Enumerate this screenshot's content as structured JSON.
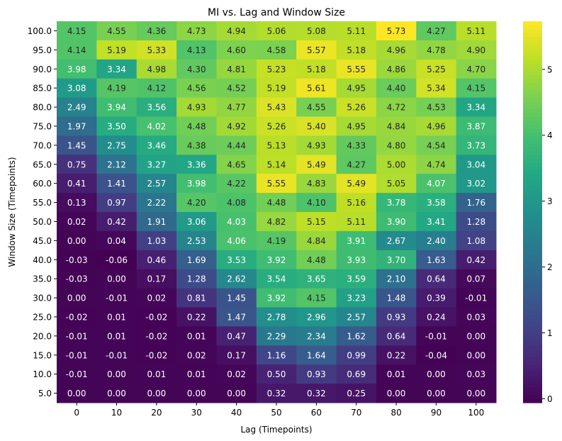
{
  "chart_data": {
    "type": "heatmap",
    "title": "MI vs. Lag and Window Size",
    "xlabel": "Lag (Timepoints)",
    "ylabel": "Window Size (Timepoints)",
    "x_categories": [
      "0",
      "10",
      "20",
      "30",
      "40",
      "50",
      "60",
      "70",
      "80",
      "90",
      "100"
    ],
    "y_categories": [
      "100.0",
      "95.0",
      "90.0",
      "85.0",
      "80.0",
      "75.0",
      "70.0",
      "65.0",
      "60.0",
      "55.0",
      "50.0",
      "45.0",
      "40.0",
      "35.0",
      "30.0",
      "25.0",
      "20.0",
      "15.0",
      "10.0",
      "5.0"
    ],
    "values": [
      [
        4.15,
        4.55,
        4.36,
        4.73,
        4.94,
        5.06,
        5.08,
        5.11,
        5.73,
        4.27,
        5.11
      ],
      [
        4.14,
        5.19,
        5.33,
        4.13,
        4.6,
        4.58,
        5.57,
        5.18,
        4.96,
        4.78,
        4.9
      ],
      [
        3.98,
        3.34,
        4.98,
        4.3,
        4.81,
        5.23,
        5.18,
        5.55,
        4.86,
        5.25,
        4.7
      ],
      [
        3.08,
        4.19,
        4.12,
        4.56,
        4.52,
        5.19,
        5.61,
        4.95,
        4.4,
        5.34,
        4.15
      ],
      [
        2.49,
        3.94,
        3.56,
        4.93,
        4.77,
        5.43,
        4.55,
        5.26,
        4.72,
        4.53,
        3.34
      ],
      [
        1.97,
        3.5,
        4.02,
        4.48,
        4.92,
        5.26,
        5.4,
        4.95,
        4.84,
        4.96,
        3.87
      ],
      [
        1.45,
        2.75,
        3.46,
        4.38,
        4.44,
        5.13,
        4.93,
        4.33,
        4.8,
        4.54,
        3.73
      ],
      [
        0.75,
        2.12,
        3.27,
        3.36,
        4.65,
        5.14,
        5.49,
        4.27,
        5.0,
        4.74,
        3.04
      ],
      [
        0.41,
        1.41,
        2.57,
        3.98,
        4.22,
        5.55,
        4.83,
        5.49,
        5.05,
        4.07,
        3.02
      ],
      [
        0.13,
        0.97,
        2.22,
        4.2,
        4.08,
        4.48,
        4.1,
        5.16,
        3.78,
        3.58,
        1.76
      ],
      [
        0.02,
        0.42,
        1.91,
        3.06,
        4.03,
        4.82,
        5.15,
        5.11,
        3.9,
        3.41,
        1.28
      ],
      [
        0.0,
        0.04,
        1.03,
        2.53,
        4.06,
        4.19,
        4.84,
        3.91,
        2.67,
        2.4,
        1.08
      ],
      [
        -0.03,
        -0.06,
        0.46,
        1.69,
        3.53,
        3.92,
        4.48,
        3.93,
        3.7,
        1.63,
        0.42
      ],
      [
        -0.03,
        -0.0,
        0.17,
        1.28,
        2.62,
        3.54,
        3.65,
        3.59,
        2.1,
        0.64,
        0.07
      ],
      [
        -0.0,
        -0.01,
        0.02,
        0.81,
        1.45,
        3.92,
        4.15,
        3.23,
        1.48,
        0.39,
        -0.01
      ],
      [
        -0.02,
        0.01,
        -0.02,
        0.22,
        1.47,
        2.78,
        2.96,
        2.57,
        0.93,
        0.24,
        0.03
      ],
      [
        -0.01,
        0.01,
        -0.02,
        0.01,
        0.47,
        2.29,
        2.34,
        1.62,
        0.64,
        -0.01,
        -0.0
      ],
      [
        -0.01,
        -0.01,
        -0.02,
        0.02,
        0.17,
        1.16,
        1.64,
        0.99,
        0.22,
        -0.04,
        -0.0
      ],
      [
        -0.01,
        0.0,
        0.01,
        0.01,
        0.02,
        0.5,
        0.93,
        0.69,
        0.01,
        -0.0,
        0.03
      ],
      [
        -0.0,
        0.0,
        -0.0,
        0.0,
        -0.0,
        0.32,
        0.32,
        0.25,
        0.0,
        -0.0,
        0.0
      ]
    ],
    "colormap": "viridis",
    "color_range": [
      -0.06,
      5.73
    ],
    "colorbar_ticks": [
      "0",
      "1",
      "2",
      "3",
      "4",
      "5"
    ],
    "annotations": true,
    "grid": false
  }
}
